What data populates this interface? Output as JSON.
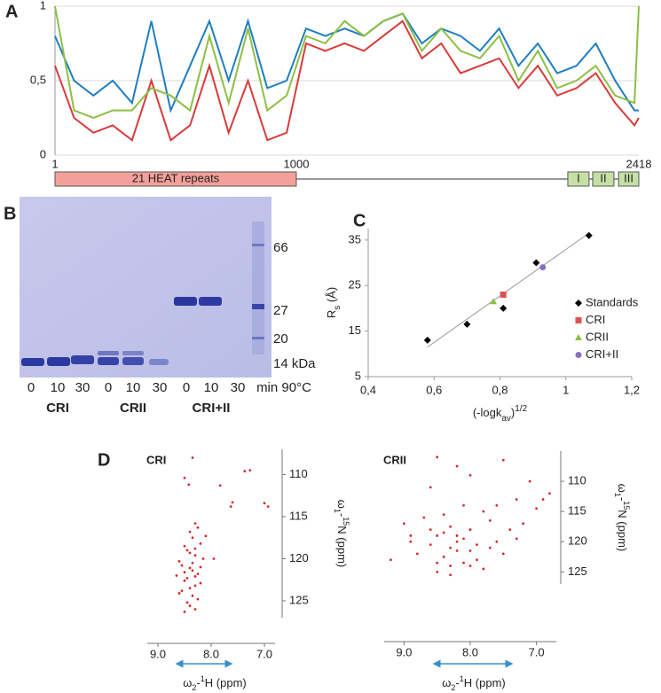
{
  "panel_labels": [
    "A",
    "B",
    "C",
    "D"
  ],
  "gel": {
    "markers": [
      "66",
      "27",
      "20",
      "14 kDa"
    ],
    "lanes": [
      "0",
      "10",
      "30",
      "0",
      "10",
      "30",
      "0",
      "10",
      "30"
    ],
    "time_unit": "min 90°C",
    "groups": [
      "CRI",
      "CRII",
      "CRI+II"
    ]
  },
  "chart_data": [
    {
      "type": "line",
      "grid": true,
      "x": [
        1,
        80,
        160,
        240,
        320,
        400,
        480,
        560,
        640,
        720,
        800,
        880,
        960,
        1040,
        1120,
        1200,
        1280,
        1360,
        1440,
        1520,
        1600,
        1680,
        1760,
        1840,
        1920,
        2000,
        2080,
        2160,
        2240,
        2320,
        2400,
        2418
      ],
      "series": [
        {
          "color": "#1f7ec0",
          "values": [
            0.8,
            0.5,
            0.4,
            0.5,
            0.35,
            0.9,
            0.3,
            0.6,
            0.9,
            0.5,
            0.9,
            0.45,
            0.5,
            0.85,
            0.8,
            0.85,
            0.8,
            0.9,
            0.95,
            0.75,
            0.85,
            0.8,
            0.7,
            0.85,
            0.6,
            0.75,
            0.55,
            0.6,
            0.75,
            0.5,
            0.3,
            0.3
          ]
        },
        {
          "color": "#d93a3a",
          "values": [
            0.6,
            0.25,
            0.15,
            0.2,
            0.1,
            0.5,
            0.1,
            0.2,
            0.6,
            0.15,
            0.5,
            0.1,
            0.15,
            0.75,
            0.7,
            0.75,
            0.7,
            0.8,
            0.9,
            0.65,
            0.75,
            0.55,
            0.6,
            0.65,
            0.45,
            0.6,
            0.4,
            0.45,
            0.55,
            0.35,
            0.2,
            0.25
          ]
        },
        {
          "color": "#8dbf45",
          "values": [
            1,
            0.3,
            0.25,
            0.3,
            0.3,
            0.45,
            0.4,
            0.3,
            0.8,
            0.35,
            0.85,
            0.3,
            0.4,
            0.8,
            0.75,
            0.9,
            0.8,
            0.9,
            0.95,
            0.7,
            0.85,
            0.7,
            0.65,
            0.8,
            0.5,
            0.7,
            0.45,
            0.5,
            0.6,
            0.4,
            0.35,
            1
          ]
        }
      ],
      "xlim": [
        1,
        2418
      ],
      "xticks": [
        1,
        1000,
        2418
      ],
      "ylim": [
        0,
        1
      ],
      "yticks": [
        0,
        {
          "value": 0.5,
          "label": "0,5"
        },
        1
      ],
      "domains": [
        {
          "label": "21 HEAT repeats",
          "start": 1,
          "end": 1000,
          "color": "#f4a09a"
        },
        {
          "label": "I",
          "start": 2124,
          "end": 2212,
          "color": "#c5e0a5"
        },
        {
          "label": "II",
          "start": 2227,
          "end": 2315,
          "color": "#c5e0a5"
        },
        {
          "label": "III",
          "start": 2334,
          "end": 2418,
          "color": "#c5e0a5"
        }
      ]
    },
    {
      "type": "scatter",
      "legend": "right",
      "x_label": {
        "main": "(-logk",
        "sub": "av",
        "rest": ")",
        "sup": "1/2"
      },
      "y_label": {
        "main": "R",
        "sub": "s",
        "rest": " (Å)"
      },
      "xlim": [
        0.4,
        1.2
      ],
      "xticks": [
        {
          "value": 0.4,
          "label": "0,4"
        },
        {
          "value": 0.6,
          "label": "0,6"
        },
        {
          "value": 0.8,
          "label": "0,8"
        },
        1,
        {
          "value": 1.2,
          "label": "1,2"
        }
      ],
      "ylim": [
        5,
        37.5
      ],
      "yticks": [
        5,
        15,
        25,
        35
      ],
      "trendline": {
        "color": "#999999",
        "x": [
          0.58,
          1.07
        ],
        "y": [
          11.5,
          36.5
        ]
      },
      "series": [
        {
          "name": "Standards",
          "color": "#000000",
          "marker": "diamond",
          "x": [
            0.58,
            0.7,
            0.81,
            0.91,
            1.07
          ],
          "values": [
            13,
            16.5,
            20,
            30,
            36
          ]
        },
        {
          "name": "CRI",
          "color": "#e05050",
          "marker": "square",
          "x": [
            0.81
          ],
          "values": [
            23
          ]
        },
        {
          "name": "CRII",
          "color": "#8dbf45",
          "marker": "triangle",
          "x": [
            0.78
          ],
          "values": [
            21.5
          ]
        },
        {
          "name": "CRI+II",
          "color": "#8a6fc0",
          "marker": "circle",
          "x": [
            0.93
          ],
          "values": [
            29
          ]
        }
      ]
    },
    {
      "type": "scatter",
      "title": "CRI",
      "color": "#d42a2a",
      "y_axis_side": "right",
      "x_label": [
        "ω",
        "2",
        "-",
        "1",
        "H (ppm)"
      ],
      "y_label": [
        "ω",
        "1",
        "-",
        "15",
        "N (ppm)"
      ],
      "xlim": [
        9.2,
        6.8
      ],
      "xticks": [
        {
          "value": 9,
          "label": "9.0"
        },
        {
          "value": 8,
          "label": "8.0"
        },
        {
          "value": 7,
          "label": "7.0"
        }
      ],
      "ylim": [
        127,
        107
      ],
      "yticks": [
        110,
        115,
        120,
        125
      ],
      "x": [
        8.35,
        8.5,
        8.42,
        7.83,
        7.27,
        7.37,
        7.6,
        7.63,
        7.0,
        6.93,
        8.3,
        8.25,
        8.4,
        8.35,
        8.2,
        8.5,
        8.45,
        8.3,
        8.15,
        8.6,
        8.55,
        8.4,
        8.35,
        8.25,
        8.3,
        8.45,
        8.5,
        8.2,
        8.3,
        8.4,
        8.55,
        8.6,
        8.35,
        8.25,
        8.45,
        8.4,
        8.3,
        8.5,
        8.2,
        8.35,
        8.65,
        8.4,
        7.95,
        8.1,
        8.3,
        8.5
      ],
      "values": [
        108,
        110.4,
        111.2,
        111.3,
        109.5,
        109.6,
        113.3,
        113.8,
        113.4,
        113.8,
        115.8,
        116.3,
        116.8,
        117.5,
        118.2,
        118.5,
        119,
        119.6,
        120,
        120.3,
        120.8,
        121.1,
        121.4,
        121.8,
        122.1,
        122.3,
        122.6,
        122.9,
        123.2,
        123.5,
        123.8,
        124.1,
        124.4,
        124.8,
        125.2,
        125.6,
        126,
        126.3,
        121,
        120.5,
        122,
        119.3,
        120,
        117.3,
        118.8,
        121.6
      ]
    },
    {
      "type": "scatter",
      "title": "CRII",
      "color": "#d42a2a",
      "y_axis_side": "right",
      "x_label": [
        "ω",
        "2",
        "-",
        "1",
        "H (ppm)"
      ],
      "y_label": [
        "ω",
        "1",
        "-",
        "15",
        "N (ppm)"
      ],
      "xlim": [
        9.3,
        6.7
      ],
      "xticks": [
        {
          "value": 9,
          "label": "9.0"
        },
        {
          "value": 8,
          "label": "8.0"
        },
        {
          "value": 7,
          "label": "7.0"
        }
      ],
      "ylim": [
        127,
        105
      ],
      "yticks": [
        110,
        115,
        120,
        125
      ],
      "x": [
        8.5,
        8.2,
        7.5,
        8.0,
        8.6,
        7.1,
        6.8,
        6.9,
        7.0,
        7.3,
        7.6,
        7.8,
        8.1,
        8.4,
        8.7,
        9.0,
        8.9,
        8.3,
        8.0,
        7.7,
        7.4,
        7.2,
        8.5,
        8.2,
        8.1,
        7.9,
        8.6,
        8.3,
        8.0,
        7.6,
        9.2,
        8.8,
        8.4,
        8.2,
        7.9,
        7.5,
        8.5,
        8.3,
        8.1,
        7.8,
        7.3,
        8.6,
        8.4,
        8.2,
        8.0,
        7.7,
        8.9,
        8.5,
        8.3,
        8.0
      ],
      "values": [
        106,
        107.5,
        106.5,
        109,
        111,
        110,
        112,
        113,
        114.5,
        113,
        114,
        115,
        114,
        115.5,
        116,
        117,
        119,
        117.5,
        118,
        116.5,
        118,
        117,
        119,
        120,
        119.5,
        120.5,
        120.5,
        121,
        121.5,
        120,
        123,
        122,
        122.5,
        121.5,
        123,
        122,
        123.5,
        124,
        123.5,
        124.5,
        119.5,
        118,
        118.5,
        119,
        118,
        121,
        120,
        125,
        125.5,
        124
      ]
    }
  ]
}
